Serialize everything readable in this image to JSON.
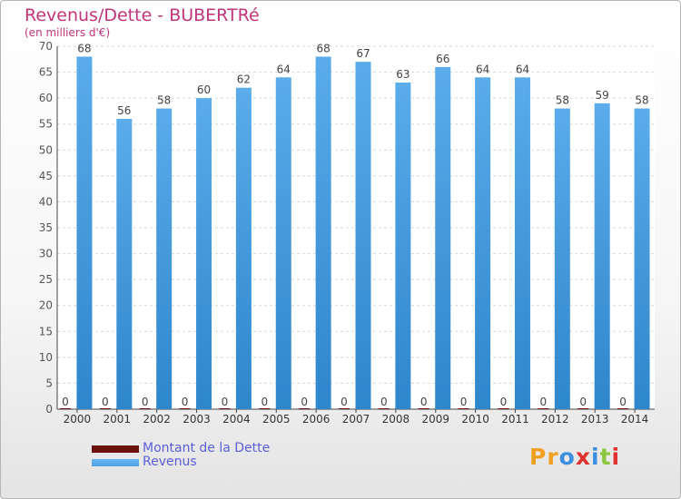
{
  "header": {
    "title": "Revenus/Dette - BUBERTRé",
    "subtitle": "(en milliers d'€)"
  },
  "legend": {
    "items": [
      {
        "label": "Montant de la Dette",
        "color": "#6b0f0f"
      },
      {
        "label": "Revenus",
        "color": "#4fa3e6"
      }
    ]
  },
  "branding": {
    "logo_text": "Proxiti",
    "letter_colors": [
      "#f0a020",
      "#f0a020",
      "#3b8ee0",
      "#e03030",
      "#3b8ee0",
      "#8cc63f",
      "#e03030"
    ]
  },
  "chart_data": {
    "type": "bar",
    "categories": [
      "2000",
      "2001",
      "2002",
      "2003",
      "2004",
      "2005",
      "2006",
      "2007",
      "2008",
      "2009",
      "2010",
      "2011",
      "2012",
      "2013",
      "2014"
    ],
    "series": [
      {
        "name": "Montant de la Dette",
        "color": "#6b0f0f",
        "values": [
          0,
          0,
          0,
          0,
          0,
          0,
          0,
          0,
          0,
          0,
          0,
          0,
          0,
          0,
          0
        ]
      },
      {
        "name": "Revenus",
        "color": "#4fa3e6",
        "values": [
          68,
          56,
          58,
          60,
          62,
          64,
          68,
          67,
          63,
          66,
          64,
          64,
          58,
          59,
          58
        ]
      }
    ],
    "ylim": [
      0,
      70
    ],
    "yticks": [
      0,
      5,
      10,
      15,
      20,
      25,
      30,
      35,
      40,
      45,
      50,
      55,
      60,
      65,
      70
    ],
    "grid": true,
    "legend_position": "bottom-left"
  }
}
